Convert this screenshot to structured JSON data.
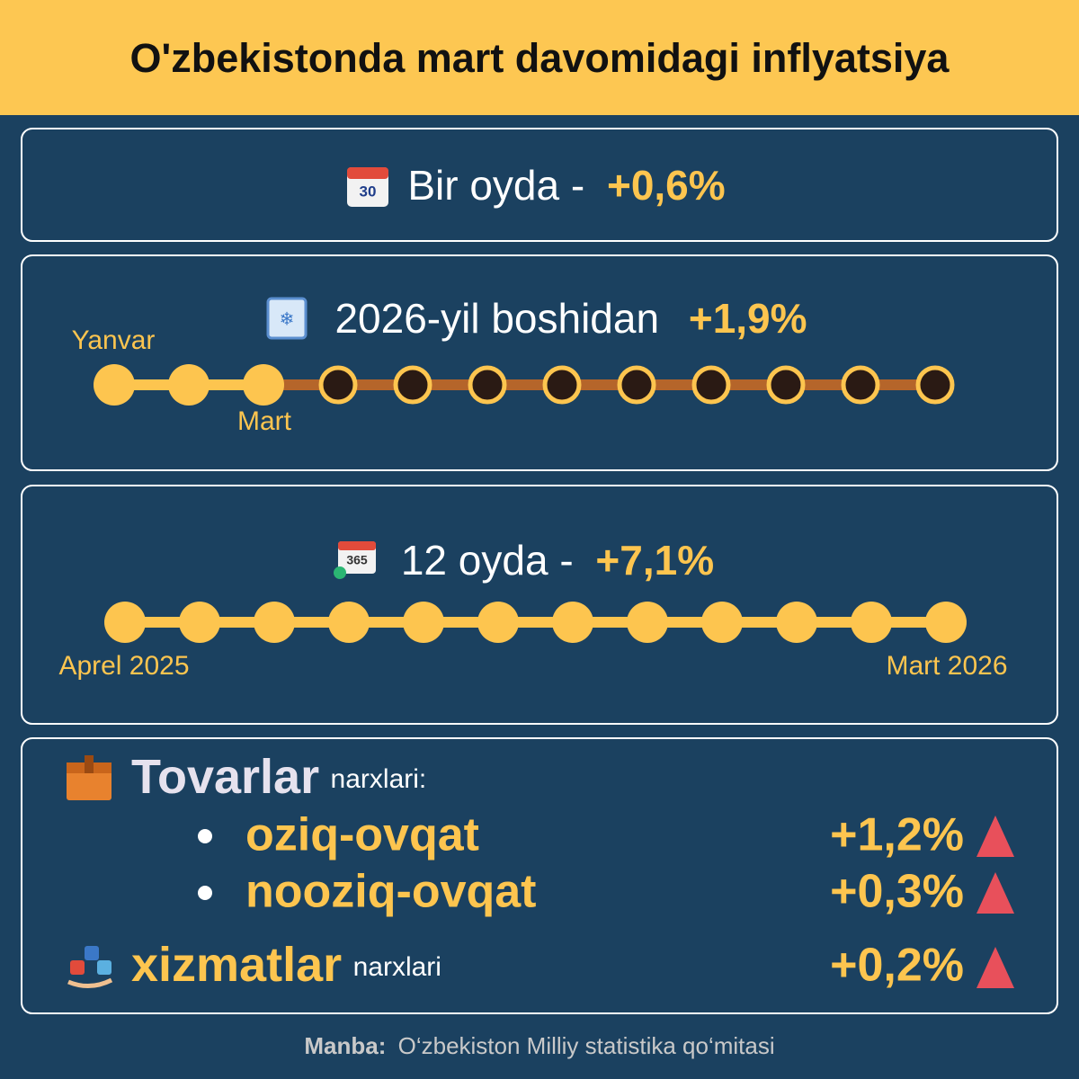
{
  "header": {
    "title": "O'zbekistonda mart davomidagi inflyatsiya"
  },
  "month": {
    "label": "Bir oyda -",
    "value": "+0,6%"
  },
  "year_to_date": {
    "label": "2026-yil boshidan",
    "value": "+1,9%",
    "start_label": "Yanvar",
    "current_label": "Mart"
  },
  "twelve_months": {
    "label": "12 oyda -",
    "value": "+7,1%",
    "start_label": "Aprel 2025",
    "end_label": "Mart 2026"
  },
  "breakdown": {
    "goods_title": "Tovarlar",
    "goods_suffix": "narxlari:",
    "items": [
      {
        "label": "oziq-ovqat",
        "value": "+1,2%"
      },
      {
        "label": "nooziq-ovqat",
        "value": "+0,3%"
      }
    ],
    "services_title": "xizmatlar",
    "services_suffix": "narxlari",
    "services_value": "+0,2%"
  },
  "footer": {
    "source_label": "Manba:",
    "source": "O‘zbekiston Milliy statistika qo‘mitasi"
  }
}
